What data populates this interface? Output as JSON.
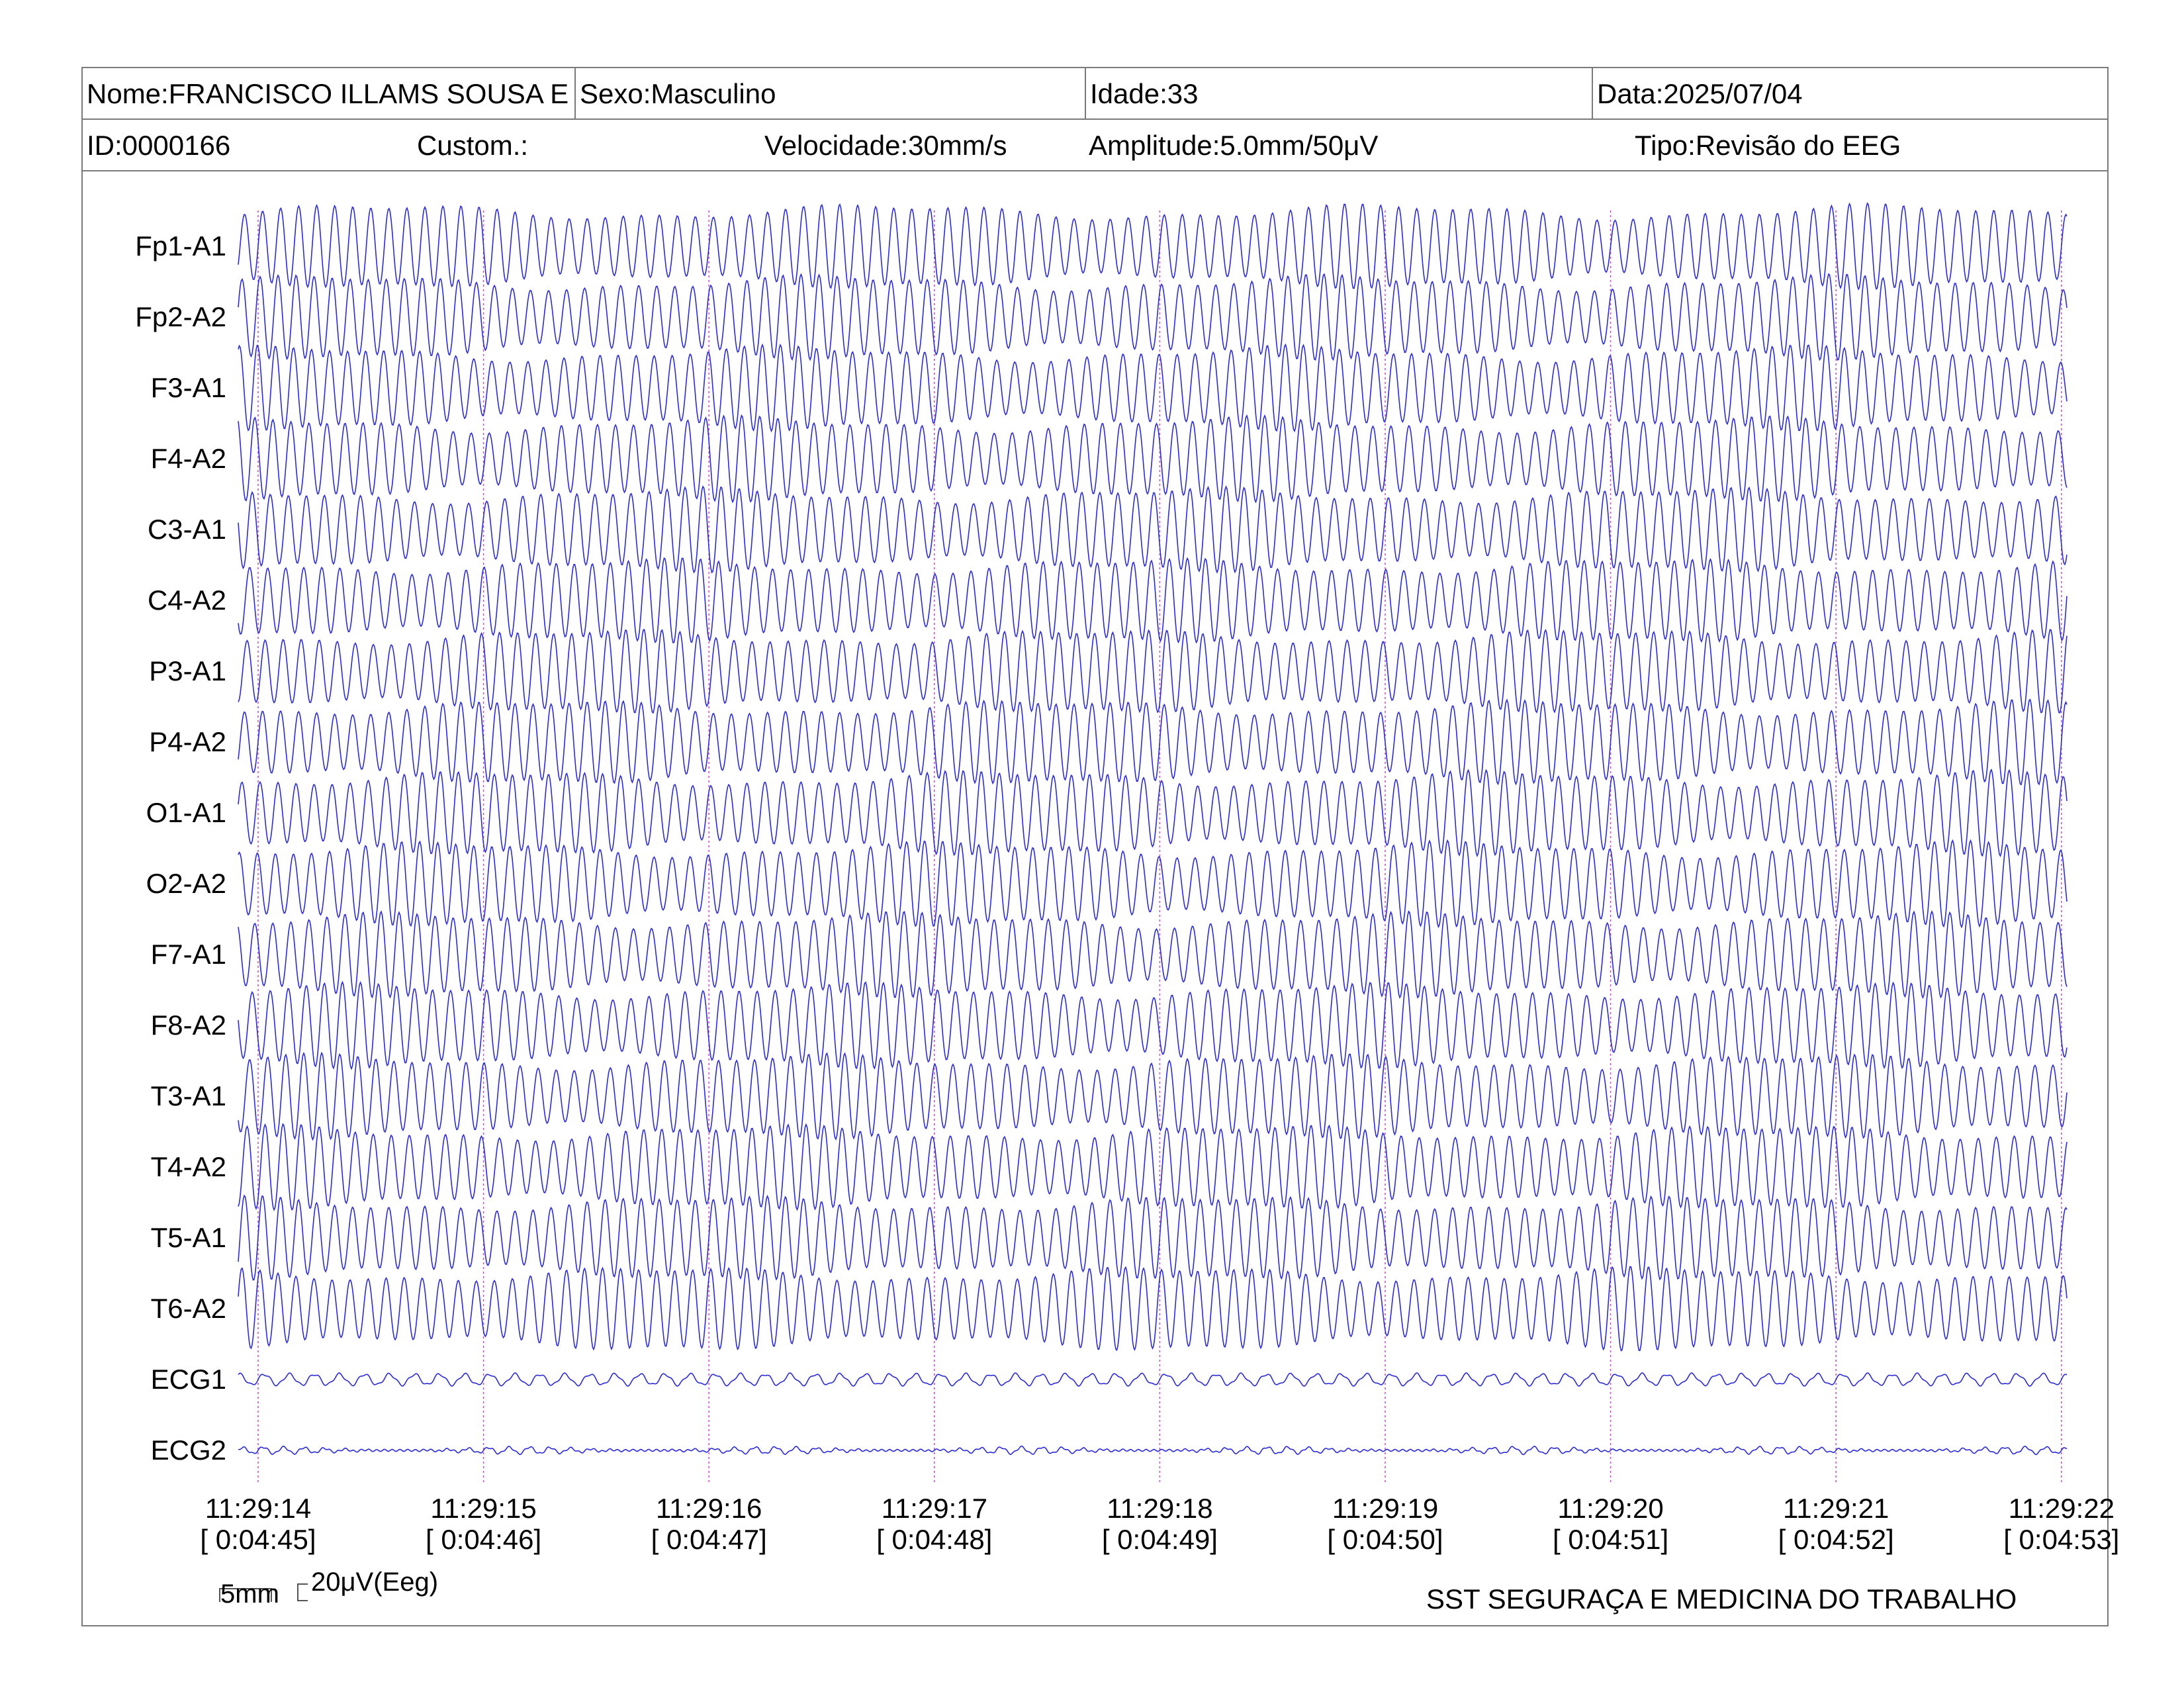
{
  "header": {
    "nome": "Nome:FRANCISCO ILLAMS SOUSA E",
    "sexo": "Sexo:Masculino",
    "idade": "Idade:33",
    "data": "Data:2025/07/04",
    "id": "ID:0000166",
    "custom": "Custom.:",
    "velocidade": "Velocidade:30mm/s",
    "amplitude": "Amplitude:5.0mm/50μV",
    "tipo": "Tipo:Revisão do EEG"
  },
  "chart_data": {
    "type": "line",
    "series": [
      {
        "name": "Fp1-A1",
        "kind": "eeg"
      },
      {
        "name": "Fp2-A2",
        "kind": "eeg"
      },
      {
        "name": "F3-A1",
        "kind": "eeg"
      },
      {
        "name": "F4-A2",
        "kind": "eeg"
      },
      {
        "name": "C3-A1",
        "kind": "eeg"
      },
      {
        "name": "C4-A2",
        "kind": "eeg"
      },
      {
        "name": "P3-A1",
        "kind": "eeg"
      },
      {
        "name": "P4-A2",
        "kind": "eeg"
      },
      {
        "name": "O1-A1",
        "kind": "eeg"
      },
      {
        "name": "O2-A2",
        "kind": "eeg"
      },
      {
        "name": "F7-A1",
        "kind": "eeg"
      },
      {
        "name": "F8-A2",
        "kind": "eeg"
      },
      {
        "name": "T3-A1",
        "kind": "eeg"
      },
      {
        "name": "T4-A2",
        "kind": "eeg"
      },
      {
        "name": "T5-A1",
        "kind": "eeg"
      },
      {
        "name": "T6-A2",
        "kind": "eeg"
      },
      {
        "name": "ECG1",
        "kind": "ecg1"
      },
      {
        "name": "ECG2",
        "kind": "ecg2"
      }
    ],
    "time_ticks": [
      {
        "clock": "11:29:14",
        "elapsed": "[ 0:04:45]"
      },
      {
        "clock": "11:29:15",
        "elapsed": "[ 0:04:46]"
      },
      {
        "clock": "11:29:16",
        "elapsed": "[ 0:04:47]"
      },
      {
        "clock": "11:29:17",
        "elapsed": "[ 0:04:48]"
      },
      {
        "clock": "11:29:18",
        "elapsed": "[ 0:04:49]"
      },
      {
        "clock": "11:29:19",
        "elapsed": "[ 0:04:50]"
      },
      {
        "clock": "11:29:20",
        "elapsed": "[ 0:04:51]"
      },
      {
        "clock": "11:29:21",
        "elapsed": "[ 0:04:52]"
      },
      {
        "clock": "11:29:22",
        "elapsed": "[ 0:04:53]"
      }
    ],
    "eeg_cycles_per_second": 12.5,
    "trace_color": "#2b2bd6",
    "marker_color": "#cc44cc"
  },
  "scale": {
    "time": "5mm",
    "amplitude": "20μV(Eeg)"
  },
  "footer": {
    "company": "SST SEGURAÇA E MEDICINA DO TRABALHO"
  }
}
